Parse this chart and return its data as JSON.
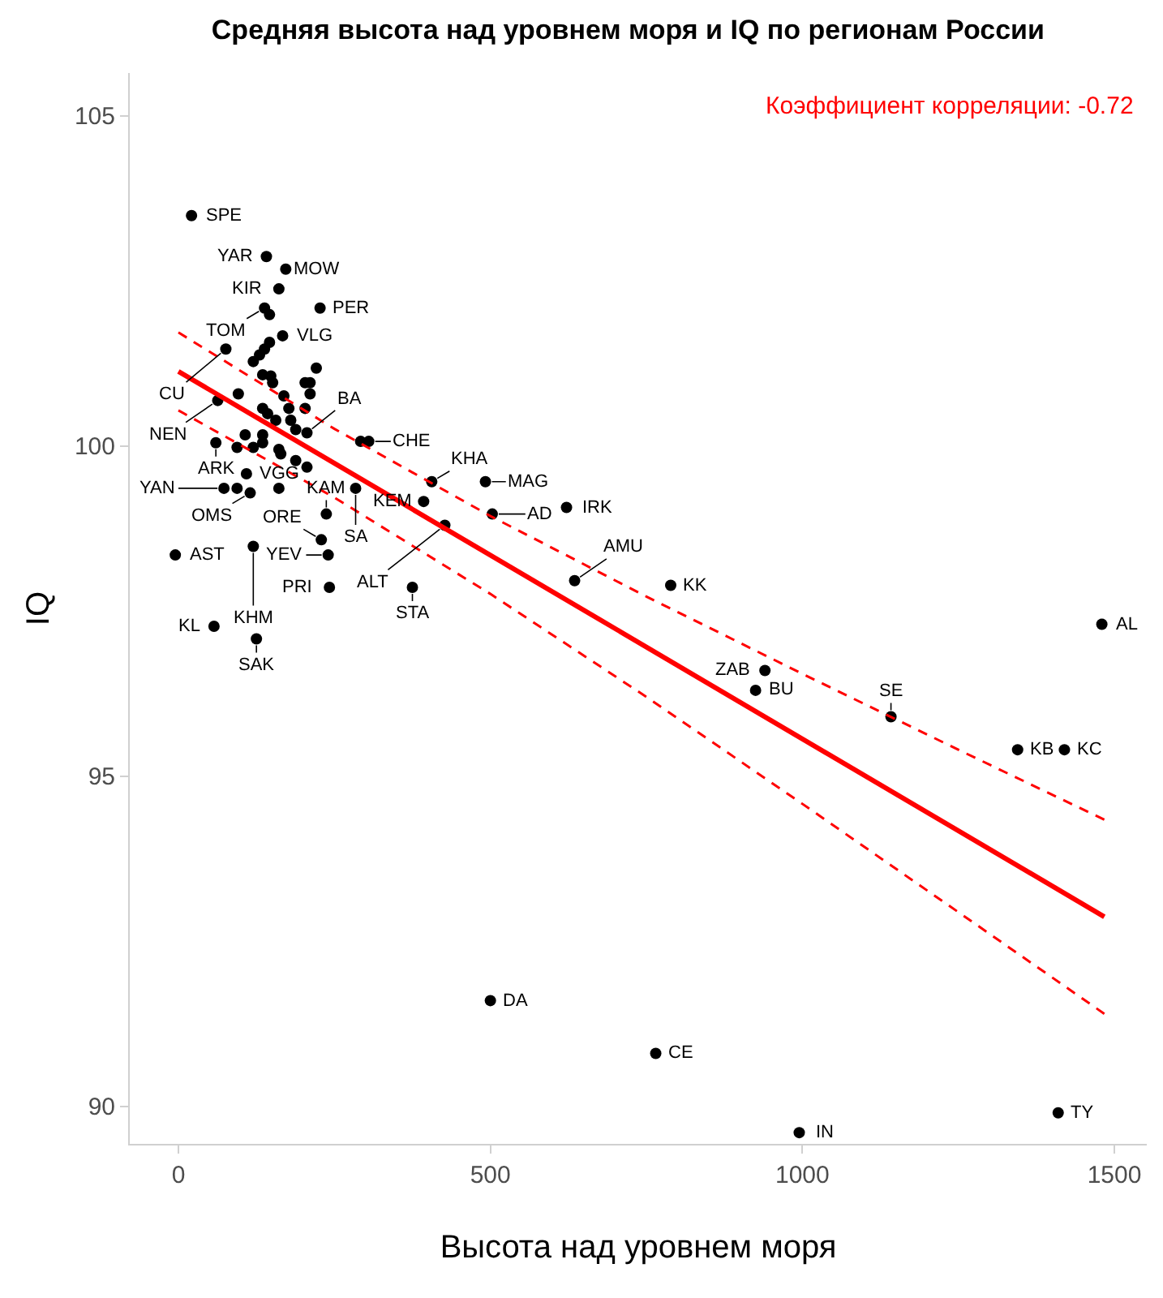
{
  "chart_data": {
    "type": "scatter",
    "title": "Средняя высота над уровнем моря и IQ по регионам России",
    "xlabel": "Высота над уровнем моря",
    "ylabel": "IQ",
    "xlim": [
      -78,
      1552
    ],
    "ylim": [
      89.43,
      105.65
    ],
    "xticks": [
      0,
      500,
      1000,
      1500
    ],
    "yticks": [
      90,
      95,
      100,
      105
    ],
    "series": [
      {
        "type": "scatter",
        "marker": "circle",
        "color": "#000000",
        "x": [
          21,
          141,
          172,
          161,
          138,
          146,
          167,
          227,
          76,
          63,
          60,
          206,
          292,
          305,
          284,
          406,
          492,
          503,
          393,
          427,
          622,
          635,
          789,
          375,
          242,
          240,
          229,
          237,
          115,
          109,
          73,
          94,
          -5,
          120,
          57,
          125,
          161,
          188,
          206,
          94,
          107,
          120,
          135,
          135,
          161,
          164,
          146,
          138,
          130,
          120,
          135,
          148,
          151,
          221,
          203,
          211,
          211,
          96,
          169,
          177,
          135,
          143,
          203,
          180,
          188,
          156,
          1480,
          1142,
          1345,
          1420,
          940,
          925,
          500,
          765,
          995,
          1410
        ],
        "values": [
          103.49,
          102.87,
          102.68,
          102.38,
          102.09,
          101.99,
          101.67,
          102.09,
          101.47,
          100.69,
          100.05,
          100.2,
          100.07,
          100.07,
          99.36,
          99.46,
          99.46,
          98.97,
          99.16,
          98.8,
          99.07,
          97.96,
          97.89,
          97.86,
          97.86,
          98.35,
          98.58,
          98.97,
          99.29,
          99.58,
          99.36,
          99.36,
          98.35,
          98.48,
          97.27,
          97.08,
          99.36,
          99.78,
          99.68,
          99.98,
          100.17,
          99.98,
          100.17,
          100.05,
          99.95,
          99.88,
          101.57,
          101.47,
          101.38,
          101.28,
          101.08,
          101.06,
          100.96,
          101.18,
          100.96,
          100.96,
          100.79,
          100.79,
          100.76,
          100.57,
          100.57,
          100.49,
          100.57,
          100.39,
          100.25,
          100.39,
          97.3,
          95.9,
          95.4,
          95.4,
          96.6,
          96.3,
          91.6,
          90.8,
          89.6,
          89.9
        ]
      },
      {
        "type": "line",
        "marker": "none",
        "line_style": "solid",
        "color": "#ff0000",
        "x": [
          0,
          1484
        ],
        "values": [
          101.13,
          92.87
        ]
      },
      {
        "type": "line",
        "marker": "none",
        "line_style": "dashed",
        "color": "#ff0000",
        "x": [
          0,
          250,
          500,
          750,
          1000,
          1250,
          1484
        ],
        "values": [
          101.72,
          100.26,
          98.94,
          97.72,
          96.55,
          95.4,
          94.34
        ]
      },
      {
        "type": "line",
        "marker": "none",
        "line_style": "dashed",
        "color": "#ff0000",
        "x": [
          0,
          250,
          500,
          750,
          1000,
          1250,
          1484
        ],
        "values": [
          100.54,
          99.22,
          97.76,
          96.2,
          94.58,
          92.94,
          91.4
        ]
      }
    ],
    "annotations": [
      "Коэффициент корреляции: -0.72",
      {
        "text": "SPE",
        "x": 21,
        "y": 103.49
      },
      {
        "text": "YAR",
        "x": 141,
        "y": 102.87
      },
      {
        "text": "MOW",
        "x": 172,
        "y": 102.68
      },
      {
        "text": "KIR",
        "x": 161,
        "y": 102.38
      },
      {
        "text": "TOM",
        "x": 138,
        "y": 102.09
      },
      {
        "text": "VLG",
        "x": 167,
        "y": 101.67
      },
      {
        "text": "PER",
        "x": 227,
        "y": 102.09
      },
      {
        "text": "CU",
        "x": 76,
        "y": 101.47
      },
      {
        "text": "NEN",
        "x": 63,
        "y": 100.69
      },
      {
        "text": "ARK",
        "x": 60,
        "y": 100.05
      },
      {
        "text": "BA",
        "x": 206,
        "y": 100.2
      },
      {
        "text": "CHE",
        "x": 305,
        "y": 100.07
      },
      {
        "text": "SA",
        "x": 284,
        "y": 99.36
      },
      {
        "text": "KHA",
        "x": 406,
        "y": 99.46
      },
      {
        "text": "MAG",
        "x": 492,
        "y": 99.46
      },
      {
        "text": "AD",
        "x": 503,
        "y": 98.97
      },
      {
        "text": "KEM",
        "x": 393,
        "y": 99.16
      },
      {
        "text": "ALT",
        "x": 427,
        "y": 98.8
      },
      {
        "text": "IRK",
        "x": 622,
        "y": 99.07
      },
      {
        "text": "AMU",
        "x": 635,
        "y": 97.96
      },
      {
        "text": "KK",
        "x": 789,
        "y": 97.89
      },
      {
        "text": "STA",
        "x": 375,
        "y": 97.86
      },
      {
        "text": "PRI",
        "x": 242,
        "y": 97.86
      },
      {
        "text": "YEV",
        "x": 240,
        "y": 98.35
      },
      {
        "text": "ORE",
        "x": 229,
        "y": 98.58
      },
      {
        "text": "KAM",
        "x": 237,
        "y": 98.97
      },
      {
        "text": "OMS",
        "x": 115,
        "y": 99.29
      },
      {
        "text": "VGG",
        "x": 109,
        "y": 99.58
      },
      {
        "text": "YAN",
        "x": 73,
        "y": 99.36
      },
      {
        "text": "AST",
        "x": -5,
        "y": 98.35
      },
      {
        "text": "KHM",
        "x": 120,
        "y": 98.48
      },
      {
        "text": "KL",
        "x": 57,
        "y": 97.27
      },
      {
        "text": "SAK",
        "x": 125,
        "y": 97.08
      },
      {
        "text": "AL",
        "x": 1480,
        "y": 97.3
      },
      {
        "text": "SE",
        "x": 1142,
        "y": 95.9
      },
      {
        "text": "KB",
        "x": 1345,
        "y": 95.4
      },
      {
        "text": "KC",
        "x": 1420,
        "y": 95.4
      },
      {
        "text": "ZAB",
        "x": 940,
        "y": 96.6
      },
      {
        "text": "BU",
        "x": 925,
        "y": 96.3
      },
      {
        "text": "DA",
        "x": 500,
        "y": 91.6
      },
      {
        "text": "CE",
        "x": 765,
        "y": 90.8
      },
      {
        "text": "IN",
        "x": 995,
        "y": 89.6
      },
      {
        "text": "TY",
        "x": 1410,
        "y": 89.9
      }
    ]
  }
}
